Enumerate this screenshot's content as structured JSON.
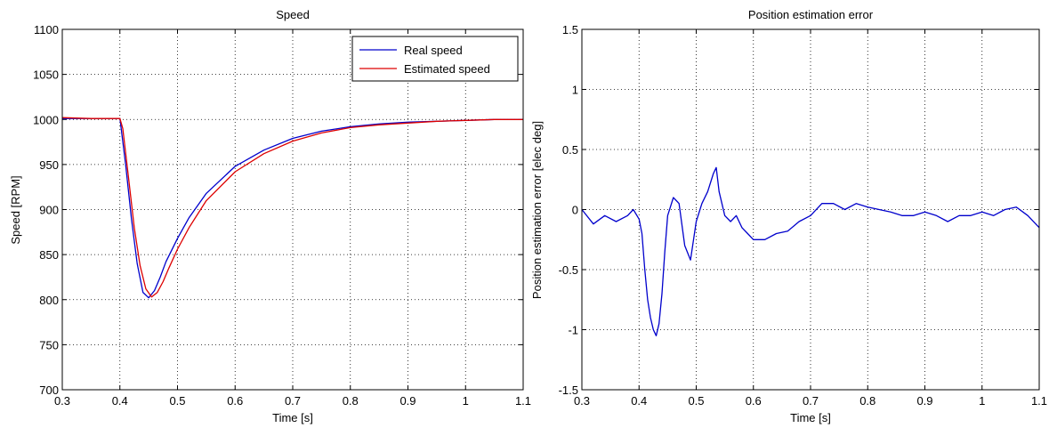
{
  "chart_data": [
    {
      "type": "line",
      "title": "Speed",
      "xlabel": "Time [s]",
      "ylabel": "Speed [RPM]",
      "xlim": [
        0.3,
        1.1
      ],
      "ylim": [
        700,
        1100
      ],
      "xticks": [
        0.3,
        0.4,
        0.5,
        0.6,
        0.7,
        0.8,
        0.9,
        1,
        1.1
      ],
      "yticks": [
        700,
        750,
        800,
        850,
        900,
        950,
        1000,
        1050,
        1100
      ],
      "grid": "dotted",
      "legend": "top-right",
      "series": [
        {
          "name": "Real speed",
          "color": "#0000cc",
          "x": [
            0.3,
            0.35,
            0.4,
            0.41,
            0.42,
            0.43,
            0.44,
            0.45,
            0.46,
            0.47,
            0.48,
            0.5,
            0.52,
            0.55,
            0.6,
            0.65,
            0.7,
            0.75,
            0.8,
            0.85,
            0.9,
            0.95,
            1.0,
            1.05,
            1.1
          ],
          "y": [
            1001,
            1001,
            1001,
            950,
            890,
            840,
            808,
            802,
            810,
            825,
            842,
            868,
            891,
            918,
            948,
            966,
            979,
            987,
            992,
            995,
            997,
            998,
            999,
            1000,
            1000
          ]
        },
        {
          "name": "Estimated speed",
          "color": "#dd0000",
          "x": [
            0.3,
            0.35,
            0.4,
            0.405,
            0.415,
            0.425,
            0.435,
            0.445,
            0.455,
            0.465,
            0.475,
            0.485,
            0.5,
            0.52,
            0.55,
            0.6,
            0.65,
            0.7,
            0.75,
            0.8,
            0.85,
            0.9,
            0.95,
            1.0,
            1.05,
            1.1
          ],
          "y": [
            1002,
            1001,
            1001,
            990,
            935,
            880,
            838,
            812,
            803,
            808,
            820,
            835,
            856,
            880,
            910,
            942,
            962,
            976,
            985,
            991,
            994,
            996,
            998,
            999,
            1000,
            1000
          ]
        }
      ]
    },
    {
      "type": "line",
      "title": "Position estimation error",
      "xlabel": "Time [s]",
      "ylabel": "Position estimation error [elec deg]",
      "xlim": [
        0.3,
        1.1
      ],
      "ylim": [
        -1.5,
        1.5
      ],
      "xticks": [
        0.3,
        0.4,
        0.5,
        0.6,
        0.7,
        0.8,
        0.9,
        1,
        1.1
      ],
      "yticks": [
        -1.5,
        -1,
        -0.5,
        0,
        0.5,
        1,
        1.5
      ],
      "grid": "dotted",
      "series": [
        {
          "color": "#0000cc",
          "x": [
            0.3,
            0.32,
            0.34,
            0.36,
            0.38,
            0.39,
            0.4,
            0.405,
            0.41,
            0.415,
            0.42,
            0.425,
            0.43,
            0.435,
            0.44,
            0.445,
            0.45,
            0.46,
            0.47,
            0.48,
            0.49,
            0.5,
            0.51,
            0.52,
            0.53,
            0.535,
            0.54,
            0.55,
            0.56,
            0.57,
            0.58,
            0.59,
            0.6,
            0.62,
            0.64,
            0.66,
            0.68,
            0.7,
            0.72,
            0.74,
            0.76,
            0.78,
            0.8,
            0.82,
            0.84,
            0.86,
            0.88,
            0.9,
            0.92,
            0.94,
            0.96,
            0.98,
            1.0,
            1.02,
            1.04,
            1.06,
            1.08,
            1.1
          ],
          "y": [
            0.0,
            -0.12,
            -0.05,
            -0.1,
            -0.05,
            0.0,
            -0.08,
            -0.2,
            -0.5,
            -0.75,
            -0.9,
            -1.0,
            -1.05,
            -0.95,
            -0.7,
            -0.35,
            -0.05,
            0.1,
            0.05,
            -0.3,
            -0.42,
            -0.1,
            0.05,
            0.15,
            0.3,
            0.35,
            0.15,
            -0.05,
            -0.1,
            -0.05,
            -0.15,
            -0.2,
            -0.25,
            -0.25,
            -0.2,
            -0.18,
            -0.1,
            -0.05,
            0.05,
            0.05,
            0.0,
            0.05,
            0.02,
            0.0,
            -0.02,
            -0.05,
            -0.05,
            -0.02,
            -0.05,
            -0.1,
            -0.05,
            -0.05,
            -0.02,
            -0.05,
            0.0,
            0.02,
            -0.05,
            -0.15
          ]
        }
      ]
    }
  ]
}
